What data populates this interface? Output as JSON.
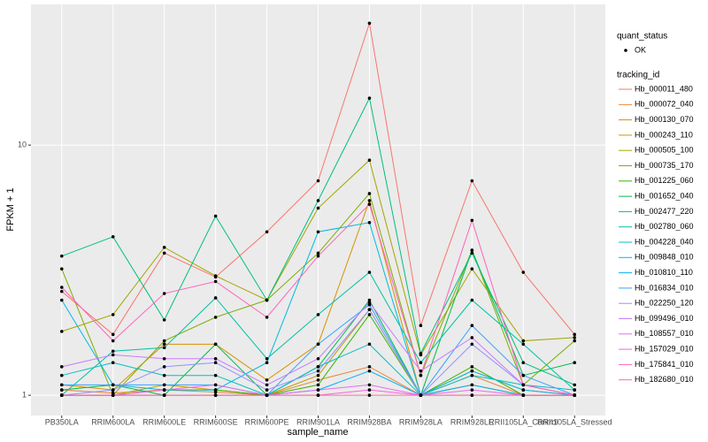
{
  "chart_data": {
    "type": "line",
    "x_label": "sample_name",
    "y_label": "FPKM + 1",
    "log_y": true,
    "grid": true,
    "shape_legend_title": "quant_status",
    "shape_legend_labels": [
      "OK"
    ],
    "color_legend_title": "tracking_id",
    "point_color": "#000000",
    "categories": [
      "PB350LA",
      "RRIM600LA",
      "RRIM600LE",
      "RRIM600SE",
      "RRIM600PE",
      "RRIM901LA",
      "RRIM928BA",
      "RRIM928LA",
      "RRIM928LE",
      "RRII105LA_Control",
      "RRII105LA_Stressed"
    ],
    "ylim": [
      0.83,
      36.5
    ],
    "yticks": [
      1,
      10
    ],
    "series": [
      {
        "name": "Hb_000011_480",
        "color": "#F8766D",
        "values": [
          2.6,
          1.75,
          3.7,
          2.97,
          4.5,
          7.2,
          30.7,
          1.9,
          7.2,
          3.1,
          1.75
        ]
      },
      {
        "name": "Hb_000072_040",
        "color": "#EA8331",
        "values": [
          1.05,
          1.02,
          1.05,
          1.03,
          1.0,
          1.15,
          1.3,
          1.0,
          1.2,
          1.0,
          1.0
        ]
      },
      {
        "name": "Hb_000130_070",
        "color": "#D89000",
        "values": [
          1.1,
          1.05,
          1.6,
          1.6,
          1.15,
          1.6,
          6.0,
          1.0,
          1.25,
          1.05,
          1.0
        ]
      },
      {
        "name": "Hb_000243_110",
        "color": "#C09B00",
        "values": [
          1.0,
          1.0,
          1.1,
          1.05,
          1.0,
          1.2,
          2.2,
          1.0,
          1.1,
          1.0,
          1.0
        ]
      },
      {
        "name": "Hb_000505_100",
        "color": "#A3A500",
        "values": [
          1.8,
          2.1,
          3.9,
          3.0,
          2.4,
          5.6,
          8.7,
          1.45,
          3.2,
          1.65,
          1.7
        ]
      },
      {
        "name": "Hb_000735_170",
        "color": "#7CAE00",
        "values": [
          3.2,
          1.0,
          1.65,
          2.05,
          2.4,
          3.7,
          6.4,
          1.2,
          3.8,
          1.1,
          1.65
        ]
      },
      {
        "name": "Hb_001225_060",
        "color": "#39B600",
        "values": [
          1.0,
          1.0,
          1.05,
          1.05,
          1.0,
          1.1,
          2.1,
          1.0,
          1.3,
          1.0,
          1.0
        ]
      },
      {
        "name": "Hb_001652_040",
        "color": "#00BB4E",
        "values": [
          1.05,
          1.1,
          1.0,
          1.6,
          1.0,
          1.3,
          2.4,
          1.0,
          3.8,
          1.2,
          1.35
        ]
      },
      {
        "name": "Hb_002477_220",
        "color": "#00BF7D",
        "values": [
          3.6,
          4.3,
          2.0,
          5.2,
          2.4,
          6.0,
          15.4,
          1.47,
          3.7,
          1.35,
          1.1
        ]
      },
      {
        "name": "Hb_002780_060",
        "color": "#00C1A3",
        "values": [
          1.0,
          1.5,
          1.55,
          2.45,
          1.4,
          2.1,
          3.1,
          1.35,
          2.4,
          1.6,
          1.05
        ]
      },
      {
        "name": "Hb_004228_040",
        "color": "#00BFC4",
        "values": [
          1.2,
          1.35,
          1.2,
          1.2,
          1.0,
          1.3,
          1.6,
          1.0,
          1.2,
          1.1,
          1.05
        ]
      },
      {
        "name": "Hb_009848_010",
        "color": "#00BAE0",
        "values": [
          2.4,
          1.1,
          1.05,
          1.05,
          1.35,
          4.5,
          4.9,
          1.0,
          1.25,
          1.05,
          1.0
        ]
      },
      {
        "name": "Hb_010810_110",
        "color": "#00B0F6",
        "values": [
          1.0,
          1.0,
          1.0,
          1.0,
          1.0,
          1.05,
          1.25,
          1.0,
          1.1,
          1.0,
          1.0
        ]
      },
      {
        "name": "Hb_016834_010",
        "color": "#35A2FF",
        "values": [
          1.1,
          1.1,
          1.1,
          1.1,
          1.0,
          1.6,
          2.3,
          1.0,
          1.9,
          1.2,
          1.0
        ]
      },
      {
        "name": "Hb_022250_120",
        "color": "#9590FF",
        "values": [
          1.0,
          1.05,
          1.3,
          1.35,
          1.05,
          1.25,
          2.2,
          1.0,
          1.6,
          1.1,
          1.0
        ]
      },
      {
        "name": "Hb_099496_010",
        "color": "#C77CFF",
        "values": [
          1.3,
          1.45,
          1.4,
          1.4,
          1.1,
          1.4,
          2.35,
          1.25,
          1.7,
          1.1,
          1.0
        ]
      },
      {
        "name": "Hb_108557_010",
        "color": "#E76BF3",
        "values": [
          1.0,
          1.0,
          1.05,
          1.1,
          1.0,
          1.05,
          1.1,
          1.0,
          1.05,
          1.0,
          1.0
        ]
      },
      {
        "name": "Hb_157029_010",
        "color": "#FA62DB",
        "values": [
          1.0,
          1.0,
          1.0,
          1.0,
          1.0,
          1.0,
          1.05,
          1.0,
          1.0,
          1.0,
          1.0
        ]
      },
      {
        "name": "Hb_175841_010",
        "color": "#FF62BC",
        "values": [
          2.7,
          1.65,
          2.55,
          2.85,
          2.05,
          3.6,
          5.8,
          1.2,
          5.0,
          1.1,
          1.0
        ]
      },
      {
        "name": "Hb_182680_010",
        "color": "#FF6C91",
        "values": [
          1.0,
          1.0,
          1.0,
          1.0,
          1.0,
          1.0,
          1.0,
          1.0,
          1.0,
          1.0,
          1.0
        ]
      }
    ]
  }
}
